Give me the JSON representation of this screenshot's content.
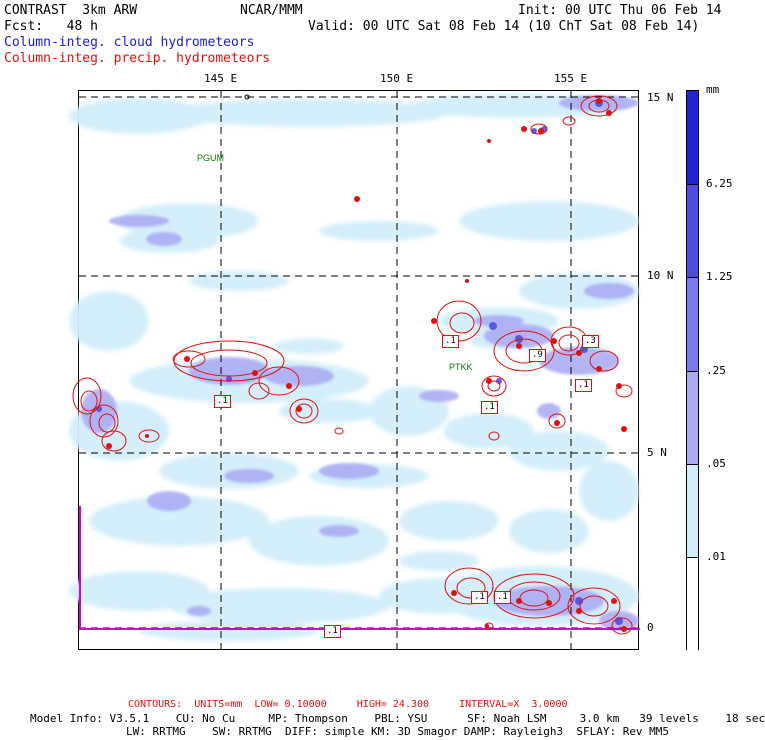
{
  "header": {
    "model": "CONTRAST  3km ARW",
    "org": "NCAR/MMM",
    "init": "Init: 00 UTC Thu 06 Feb 14",
    "fcst": "Fcst:   48 h",
    "valid": "Valid: 00 UTC Sat 08 Feb 14 (10 ChT Sat 08 Feb 14)",
    "field_cloud": "Column-integ. cloud hydrometeors",
    "field_precip": "Column-integ. precip. hydrometeors"
  },
  "axes": {
    "lon_labels": [
      "145 E",
      "150 E",
      "155 E"
    ],
    "lat_labels": [
      "15 N",
      "10 N",
      "5 N",
      "0"
    ]
  },
  "stations": [
    "PGUM",
    "PTKK"
  ],
  "contour_labels": [
    ".1",
    ".1",
    ".1",
    ".1",
    ".9",
    ".3",
    ".1",
    ".1",
    ".1"
  ],
  "colorbar": {
    "unit": "mm",
    "labels": [
      "6.25",
      "1.25",
      ".25",
      ".05",
      ".01"
    ],
    "colors": [
      "#2323d4",
      "#4d4de6",
      "#7b7bee",
      "#a9a9f4",
      "#d2eefa",
      "#ffffff"
    ]
  },
  "colors": {
    "precip_contour": "#e01010",
    "cloud_text": "#1a1ad8",
    "boundary": "#d000d0"
  },
  "footer": {
    "contours": "CONTOURS:  UNITS=mm  LOW= 0.10000     HIGH= 24.300     INTERVAL=X  3.0000",
    "model_info_1": "Model Info: V3.5.1    CU: No Cu     MP: Thompson    PBL: YSU      SF: Noah LSM     3.0 km   39 levels    18 sec",
    "model_info_2": "LW: RRTMG    SW: RRTMG  DIFF: simple KM: 3D Smagor DAMP: Rayleigh3  SFLAY: Rev MM5"
  }
}
